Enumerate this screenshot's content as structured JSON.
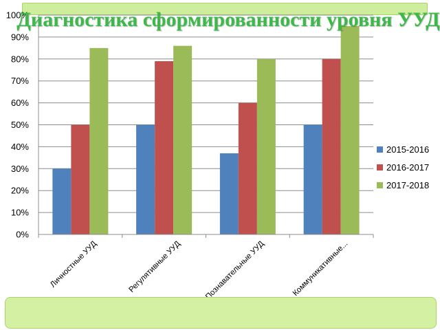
{
  "chart_data": {
    "type": "bar",
    "title": "Диагностика сформированности уровня УУД",
    "categories": [
      "Личностные УУД",
      "Регулятивные УУД",
      "Познавательные УУД",
      "Коммуникативные..."
    ],
    "series": [
      {
        "name": "2015-2016",
        "color": "#4f81bd",
        "values": [
          30,
          50,
          37,
          50
        ]
      },
      {
        "name": "2016-2017",
        "color": "#c0504d",
        "values": [
          50,
          79,
          60,
          80
        ]
      },
      {
        "name": "2017-2018",
        "color": "#9bbb59",
        "values": [
          85,
          86,
          80,
          95
        ]
      }
    ],
    "ylim": [
      0,
      100
    ],
    "yticks": [
      "0%",
      "10%",
      "20%",
      "30%",
      "40%",
      "50%",
      "60%",
      "70%",
      "80%",
      "90%",
      "100%"
    ],
    "grid": true,
    "legend": "right"
  }
}
